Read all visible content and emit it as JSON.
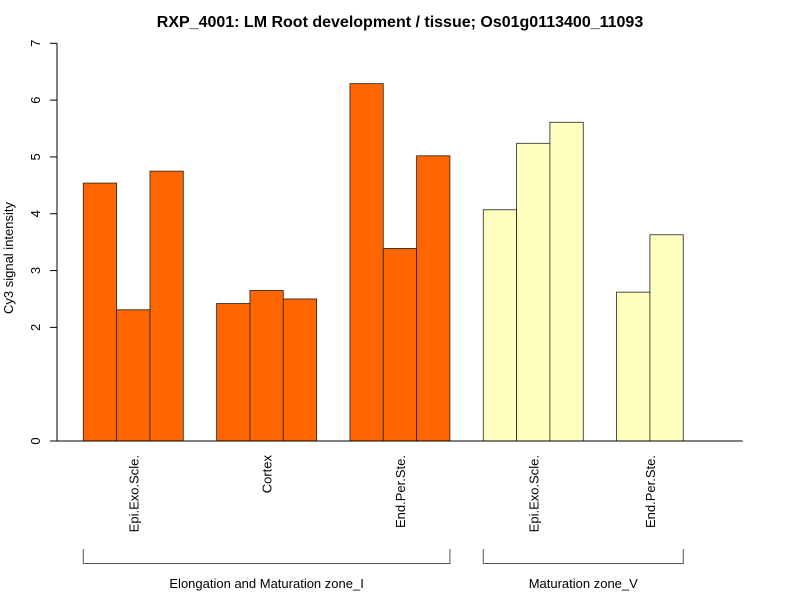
{
  "chart_data": {
    "type": "bar",
    "title": "RXP_4001: LM Root development / tissue; Os01g0113400_11093",
    "xlabel": "",
    "ylabel": "Cy3 signal intensity",
    "ylim": [
      0,
      7
    ],
    "yticks": [
      0,
      2,
      3,
      4,
      5,
      6,
      7
    ],
    "grid": false,
    "legend": "none",
    "categories": [
      {
        "label": "Epi.Exo.Scle.",
        "group": 0,
        "values": [
          4.54,
          2.31,
          4.75
        ]
      },
      {
        "label": "Cortex",
        "group": 0,
        "values": [
          2.42,
          2.65,
          2.5
        ]
      },
      {
        "label": "End.Per.Ste.",
        "group": 0,
        "values": [
          6.29,
          3.39,
          5.02
        ]
      },
      {
        "label": "Epi.Exo.Scle.",
        "group": 1,
        "values": [
          4.07,
          5.24,
          5.61
        ]
      },
      {
        "label": "End.Per.Ste.",
        "group": 1,
        "values": [
          2.62,
          3.63
        ]
      }
    ],
    "groups": [
      {
        "label": "Elongation and Maturation zone_I",
        "color": "#FF6600"
      },
      {
        "label": "Maturation zone_V",
        "color": "#FFFFC0"
      }
    ]
  }
}
